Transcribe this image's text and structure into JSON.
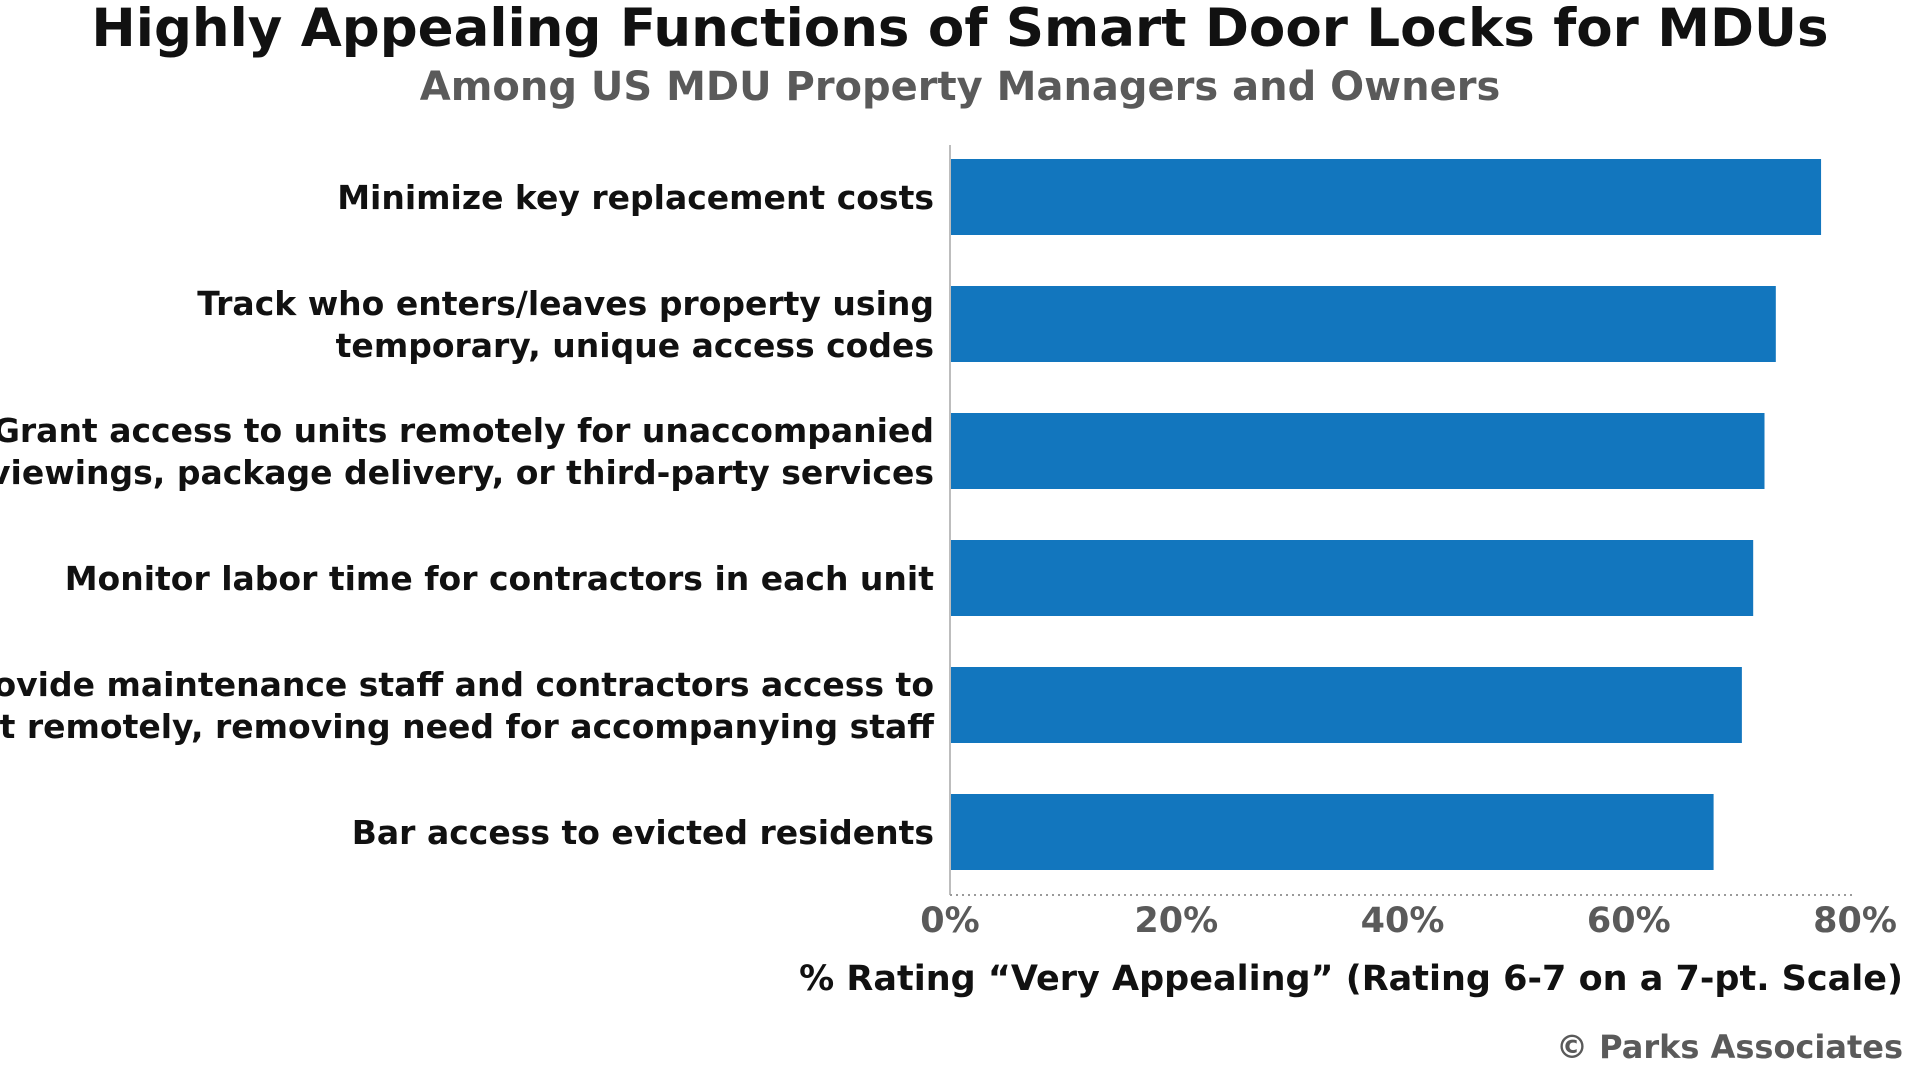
{
  "chart_data": {
    "type": "bar",
    "orientation": "horizontal",
    "title": "Highly Appealing Functions of Smart Door Locks for MDUs",
    "subtitle": "Among US MDU Property Managers and Owners",
    "categories": [
      [
        "Minimize key replacement costs"
      ],
      [
        "Track who enters/leaves property using",
        "temporary, unique access codes"
      ],
      [
        "Grant access to units remotely for unaccompanied",
        "viewings, package delivery, or third-party services"
      ],
      [
        "Monitor labor time for contractors in each unit"
      ],
      [
        "Provide maintenance staff and contractors access to",
        "unit remotely, removing need for accompanying staff"
      ],
      [
        "Bar access to evicted residents"
      ]
    ],
    "values": [
      77,
      73,
      72,
      71,
      70,
      67.5
    ],
    "xlim": [
      0,
      80
    ],
    "xticks": [
      0,
      20,
      40,
      60,
      80
    ],
    "tick_labels": [
      "0%",
      "20%",
      "40%",
      "60%",
      "80%"
    ],
    "xlabel": "% Rating “Very Appealing” (Rating 6-7 on a 7-pt. Scale)",
    "ylabel": "",
    "bar_color": "#1276be",
    "grid": false
  },
  "credit": "© Parks Associates"
}
